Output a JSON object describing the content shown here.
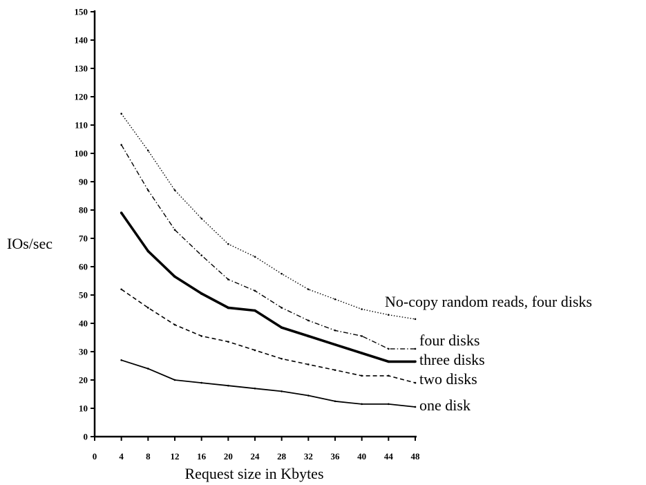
{
  "chart_data": {
    "type": "line",
    "xlabel": "Request size in Kbytes",
    "ylabel": "IOs/sec",
    "xlim": [
      0,
      48
    ],
    "ylim": [
      0,
      150
    ],
    "x_ticks": [
      0,
      4,
      8,
      12,
      16,
      20,
      24,
      28,
      32,
      36,
      40,
      44,
      48
    ],
    "y_ticks": [
      0,
      10,
      20,
      30,
      40,
      50,
      60,
      70,
      80,
      90,
      100,
      110,
      120,
      130,
      140,
      150
    ],
    "grid": false,
    "x": [
      4,
      8,
      12,
      16,
      20,
      24,
      28,
      32,
      36,
      40,
      44,
      48
    ],
    "series": [
      {
        "name": "No-copy random reads, four disks",
        "style": "dotted",
        "values": [
          114,
          101,
          87,
          77,
          68,
          63.5,
          57.5,
          52,
          48.5,
          45,
          43,
          41.5
        ]
      },
      {
        "name": "four disks",
        "style": "dash-dot",
        "values": [
          103,
          87,
          73,
          64,
          55.5,
          51.5,
          45.5,
          41,
          37.5,
          35.5,
          31,
          31
        ]
      },
      {
        "name": "three disks",
        "style": "bold",
        "values": [
          79,
          65.5,
          56.5,
          50.5,
          45.5,
          44.5,
          38.5,
          35.5,
          32.5,
          29.5,
          26.5,
          26.5
        ]
      },
      {
        "name": "two disks",
        "style": "dashed",
        "values": [
          52,
          45.5,
          39.5,
          35.5,
          33.5,
          30.5,
          27.5,
          25.5,
          23.5,
          21.5,
          21.5,
          19
        ]
      },
      {
        "name": "one disk",
        "style": "solid",
        "values": [
          27,
          24,
          20,
          19,
          18,
          17,
          16,
          14.5,
          12.5,
          11.5,
          11.5,
          10.5
        ]
      }
    ]
  }
}
